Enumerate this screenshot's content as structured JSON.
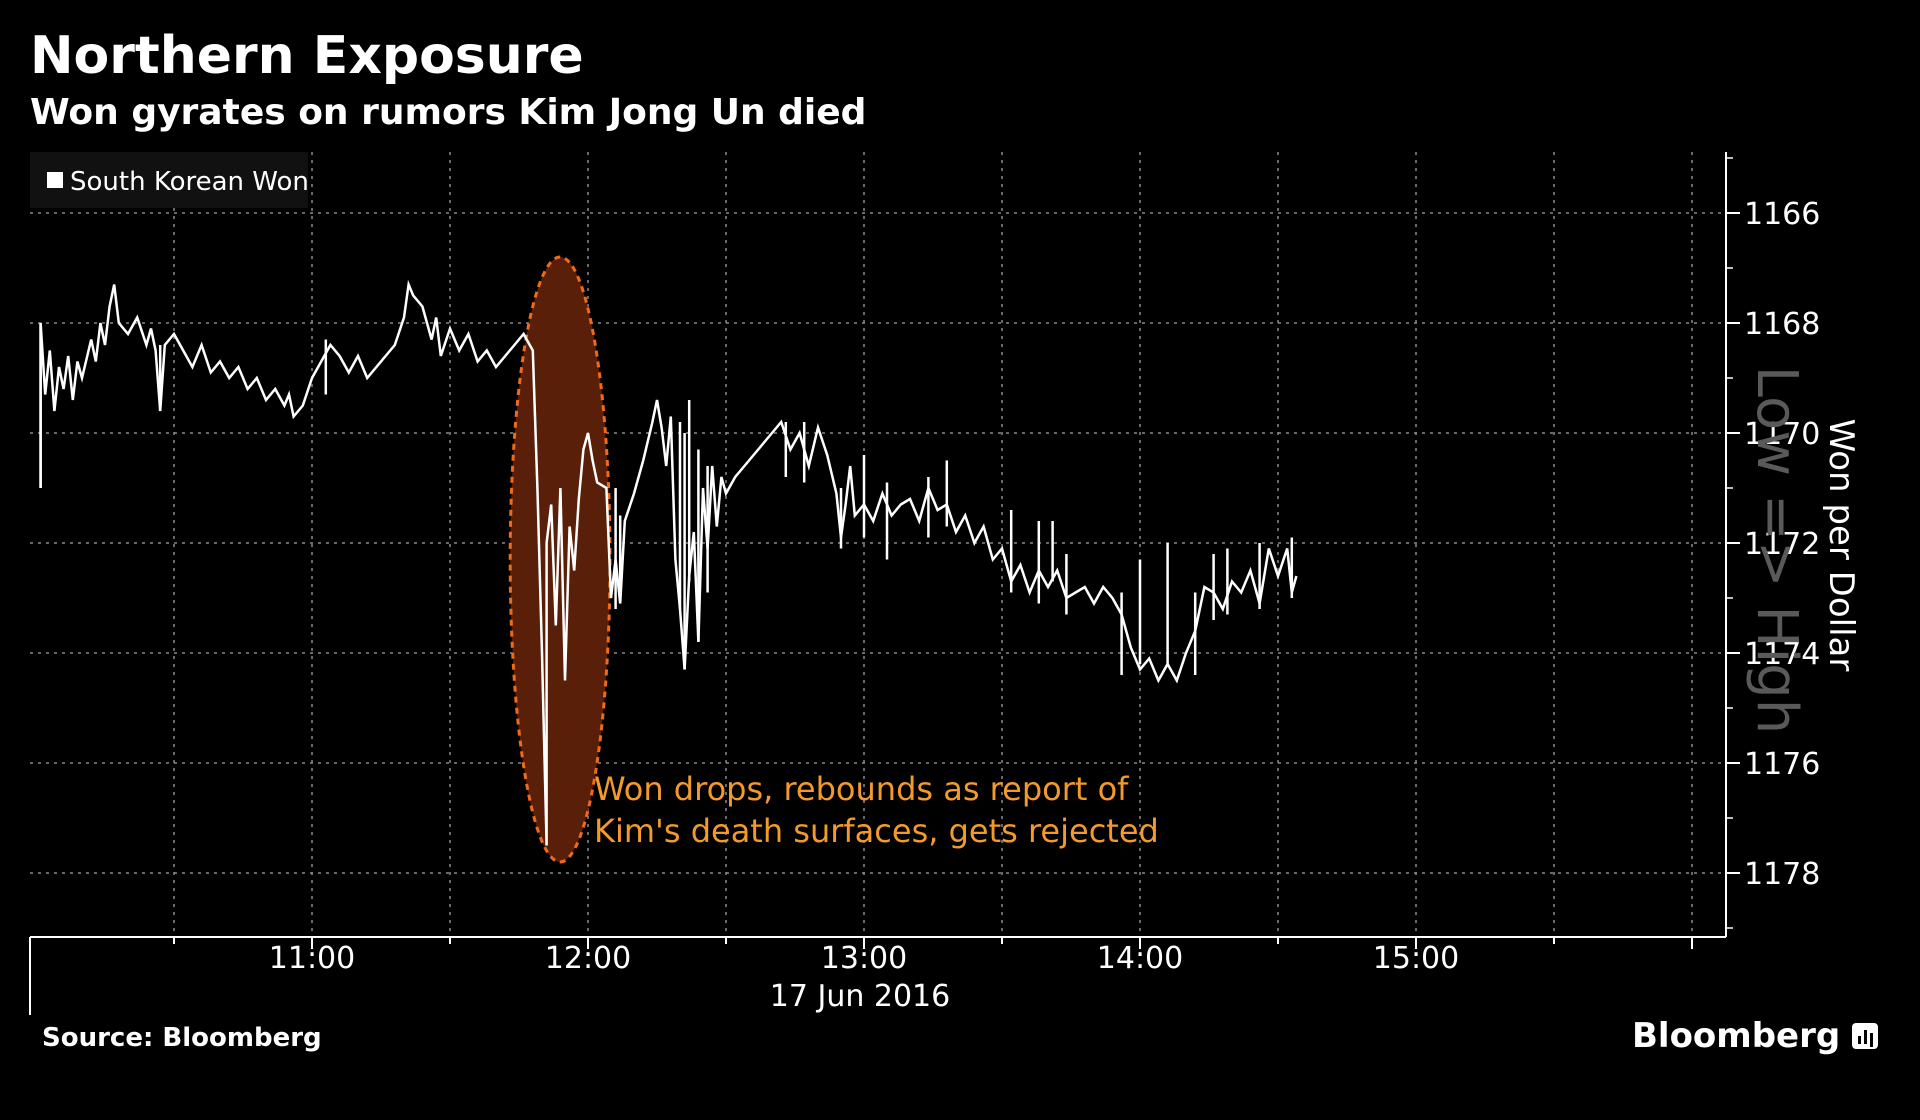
{
  "header": {
    "title": "Northern Exposure",
    "subtitle": "Won gyrates on rumors Kim Jong Un died"
  },
  "footer": {
    "source": "Source: Bloomberg",
    "brand": "Bloomberg"
  },
  "colors": {
    "background": "#000000",
    "line": "#ffffff",
    "grid": "#8a8a8a",
    "highlight_fill": "#5a1f08",
    "highlight_stroke": "#f06a1a",
    "annotation": "#f39a2c"
  },
  "chart_data": {
    "type": "line",
    "legend": [
      "South Korean Won"
    ],
    "legend_position": "top-left",
    "ylabel": "Won per Dollar",
    "y_watermark": "Low => High",
    "ylim": [
      1165,
      1179
    ],
    "y_inverted": true,
    "y_axis_side": "right",
    "y_ticks": [
      1166,
      1168,
      1170,
      1172,
      1174,
      1176,
      1178
    ],
    "x_ticks": [
      "11:00",
      "12:00",
      "13:00",
      "14:00",
      "15:00"
    ],
    "x_sublabel": "17 Jun 2016",
    "xlim": [
      "10:01",
      "16:00"
    ],
    "grid": true,
    "series": [
      {
        "name": "South Korean Won",
        "points": [
          [
            "10:01",
            1171.0
          ],
          [
            "10:01",
            1168.0
          ],
          [
            "10:02",
            1169.3
          ],
          [
            "10:03",
            1168.5
          ],
          [
            "10:04",
            1169.6
          ],
          [
            "10:05",
            1168.8
          ],
          [
            "10:06",
            1169.2
          ],
          [
            "10:07",
            1168.6
          ],
          [
            "10:08",
            1169.4
          ],
          [
            "10:09",
            1168.7
          ],
          [
            "10:10",
            1169.0
          ],
          [
            "10:12",
            1168.3
          ],
          [
            "10:13",
            1168.7
          ],
          [
            "10:14",
            1168.0
          ],
          [
            "10:15",
            1168.4
          ],
          [
            "10:16",
            1167.7
          ],
          [
            "10:17",
            1167.3
          ],
          [
            "10:18",
            1168.0
          ],
          [
            "10:20",
            1168.2
          ],
          [
            "10:22",
            1167.9
          ],
          [
            "10:24",
            1168.4
          ],
          [
            "10:25",
            1168.1
          ],
          [
            "10:26",
            1168.5
          ],
          [
            "10:27",
            1169.6
          ],
          [
            "10:28",
            1168.4
          ],
          [
            "10:30",
            1168.2
          ],
          [
            "10:32",
            1168.5
          ],
          [
            "10:34",
            1168.8
          ],
          [
            "10:36",
            1168.4
          ],
          [
            "10:38",
            1168.9
          ],
          [
            "10:40",
            1168.7
          ],
          [
            "10:42",
            1169.0
          ],
          [
            "10:44",
            1168.8
          ],
          [
            "10:46",
            1169.2
          ],
          [
            "10:48",
            1169.0
          ],
          [
            "10:50",
            1169.4
          ],
          [
            "10:52",
            1169.2
          ],
          [
            "10:54",
            1169.5
          ],
          [
            "10:55",
            1169.3
          ],
          [
            "10:56",
            1169.7
          ],
          [
            "10:58",
            1169.5
          ],
          [
            "11:00",
            1169.0
          ],
          [
            "11:02",
            1168.7
          ],
          [
            "11:04",
            1168.4
          ],
          [
            "11:06",
            1168.6
          ],
          [
            "11:08",
            1168.9
          ],
          [
            "11:10",
            1168.6
          ],
          [
            "11:12",
            1169.0
          ],
          [
            "11:14",
            1168.8
          ],
          [
            "11:16",
            1168.6
          ],
          [
            "11:18",
            1168.4
          ],
          [
            "11:20",
            1167.9
          ],
          [
            "11:21",
            1167.3
          ],
          [
            "11:22",
            1167.5
          ],
          [
            "11:24",
            1167.7
          ],
          [
            "11:26",
            1168.3
          ],
          [
            "11:27",
            1167.9
          ],
          [
            "11:28",
            1168.6
          ],
          [
            "11:30",
            1168.1
          ],
          [
            "11:32",
            1168.5
          ],
          [
            "11:34",
            1168.2
          ],
          [
            "11:36",
            1168.7
          ],
          [
            "11:38",
            1168.5
          ],
          [
            "11:40",
            1168.8
          ],
          [
            "11:42",
            1168.6
          ],
          [
            "11:44",
            1168.4
          ],
          [
            "11:46",
            1168.2
          ],
          [
            "11:48",
            1168.5
          ],
          [
            "11:49",
            1171.0
          ],
          [
            "11:50",
            1174.0
          ],
          [
            "11:51",
            1177.5
          ],
          [
            "11:51",
            1172.0
          ],
          [
            "11:52",
            1171.3
          ],
          [
            "11:53",
            1173.5
          ],
          [
            "11:54",
            1171.0
          ],
          [
            "11:55",
            1174.5
          ],
          [
            "11:56",
            1171.7
          ],
          [
            "11:57",
            1172.5
          ],
          [
            "11:58",
            1171.2
          ],
          [
            "11:59",
            1170.3
          ],
          [
            "12:00",
            1170.0
          ],
          [
            "12:01",
            1170.5
          ],
          [
            "12:02",
            1170.9
          ],
          [
            "12:04",
            1171.0
          ],
          [
            "12:05",
            1173.0
          ],
          [
            "12:06",
            1172.3
          ],
          [
            "12:07",
            1173.1
          ],
          [
            "12:08",
            1171.6
          ],
          [
            "12:10",
            1171.1
          ],
          [
            "12:12",
            1170.5
          ],
          [
            "12:14",
            1169.8
          ],
          [
            "12:15",
            1169.4
          ],
          [
            "12:16",
            1169.9
          ],
          [
            "12:17",
            1170.6
          ],
          [
            "12:18",
            1169.7
          ],
          [
            "12:19",
            1172.3
          ],
          [
            "12:20",
            1173.2
          ],
          [
            "12:21",
            1174.3
          ],
          [
            "12:22",
            1172.6
          ],
          [
            "12:23",
            1171.8
          ],
          [
            "12:24",
            1173.8
          ],
          [
            "12:25",
            1171.0
          ],
          [
            "12:26",
            1172.1
          ],
          [
            "12:27",
            1170.6
          ],
          [
            "12:28",
            1171.7
          ],
          [
            "12:29",
            1170.8
          ],
          [
            "12:30",
            1171.1
          ],
          [
            "12:32",
            1170.8
          ],
          [
            "12:34",
            1170.6
          ],
          [
            "12:36",
            1170.4
          ],
          [
            "12:38",
            1170.2
          ],
          [
            "12:40",
            1170.0
          ],
          [
            "12:42",
            1169.8
          ],
          [
            "12:44",
            1170.3
          ],
          [
            "12:46",
            1170.0
          ],
          [
            "12:48",
            1170.6
          ],
          [
            "12:50",
            1169.9
          ],
          [
            "12:52",
            1170.4
          ],
          [
            "12:54",
            1171.1
          ],
          [
            "12:55",
            1171.9
          ],
          [
            "12:56",
            1171.3
          ],
          [
            "12:57",
            1170.6
          ],
          [
            "12:58",
            1171.5
          ],
          [
            "13:00",
            1171.3
          ],
          [
            "13:02",
            1171.6
          ],
          [
            "13:04",
            1171.1
          ],
          [
            "13:06",
            1171.5
          ],
          [
            "13:08",
            1171.3
          ],
          [
            "13:10",
            1171.2
          ],
          [
            "13:12",
            1171.6
          ],
          [
            "13:14",
            1171.0
          ],
          [
            "13:16",
            1171.4
          ],
          [
            "13:18",
            1171.3
          ],
          [
            "13:20",
            1171.8
          ],
          [
            "13:22",
            1171.5
          ],
          [
            "13:24",
            1172.0
          ],
          [
            "13:26",
            1171.7
          ],
          [
            "13:28",
            1172.3
          ],
          [
            "13:30",
            1172.1
          ],
          [
            "13:32",
            1172.7
          ],
          [
            "13:34",
            1172.4
          ],
          [
            "13:36",
            1172.9
          ],
          [
            "13:38",
            1172.5
          ],
          [
            "13:40",
            1172.8
          ],
          [
            "13:42",
            1172.5
          ],
          [
            "13:44",
            1173.0
          ],
          [
            "13:46",
            1172.9
          ],
          [
            "13:48",
            1172.8
          ],
          [
            "13:50",
            1173.1
          ],
          [
            "13:52",
            1172.8
          ],
          [
            "13:54",
            1173.0
          ],
          [
            "13:56",
            1173.3
          ],
          [
            "13:58",
            1173.9
          ],
          [
            "14:00",
            1174.3
          ],
          [
            "14:02",
            1174.1
          ],
          [
            "14:04",
            1174.5
          ],
          [
            "14:06",
            1174.2
          ],
          [
            "14:08",
            1174.5
          ],
          [
            "14:10",
            1174.0
          ],
          [
            "14:12",
            1173.6
          ],
          [
            "14:14",
            1172.8
          ],
          [
            "14:16",
            1172.9
          ],
          [
            "14:18",
            1173.2
          ],
          [
            "14:20",
            1172.7
          ],
          [
            "14:22",
            1172.9
          ],
          [
            "14:24",
            1172.5
          ],
          [
            "14:26",
            1173.1
          ],
          [
            "14:28",
            1172.1
          ],
          [
            "14:30",
            1172.6
          ],
          [
            "14:32",
            1172.1
          ],
          [
            "14:33",
            1172.9
          ],
          [
            "14:34",
            1172.6
          ]
        ]
      }
    ],
    "spikes": [
      {
        "time": "10:01",
        "low": 1168.0,
        "high": 1171.0
      },
      {
        "time": "10:27",
        "low": 1168.4,
        "high": 1169.6
      },
      {
        "time": "11:03",
        "low": 1168.3,
        "high": 1169.3
      },
      {
        "time": "12:06",
        "low": 1171.0,
        "high": 1173.2
      },
      {
        "time": "12:07",
        "low": 1171.5,
        "high": 1173.1
      },
      {
        "time": "12:20",
        "low": 1169.8,
        "high": 1173.2
      },
      {
        "time": "12:21",
        "low": 1170.0,
        "high": 1174.3
      },
      {
        "time": "12:22",
        "low": 1169.4,
        "high": 1172.7
      },
      {
        "time": "12:24",
        "low": 1170.3,
        "high": 1173.8
      },
      {
        "time": "12:26",
        "low": 1170.6,
        "high": 1172.9
      },
      {
        "time": "12:43",
        "low": 1169.8,
        "high": 1170.8
      },
      {
        "time": "12:47",
        "low": 1169.8,
        "high": 1170.9
      },
      {
        "time": "12:55",
        "low": 1171.0,
        "high": 1172.1
      },
      {
        "time": "13:00",
        "low": 1170.4,
        "high": 1171.9
      },
      {
        "time": "13:05",
        "low": 1170.9,
        "high": 1172.3
      },
      {
        "time": "13:14",
        "low": 1170.8,
        "high": 1171.9
      },
      {
        "time": "13:18",
        "low": 1170.5,
        "high": 1171.7
      },
      {
        "time": "13:32",
        "low": 1171.4,
        "high": 1172.9
      },
      {
        "time": "13:38",
        "low": 1171.6,
        "high": 1173.1
      },
      {
        "time": "13:41",
        "low": 1171.6,
        "high": 1172.7
      },
      {
        "time": "13:44",
        "low": 1172.2,
        "high": 1173.3
      },
      {
        "time": "13:56",
        "low": 1172.9,
        "high": 1174.4
      },
      {
        "time": "14:00",
        "low": 1172.3,
        "high": 1174.2
      },
      {
        "time": "14:06",
        "low": 1172.0,
        "high": 1174.2
      },
      {
        "time": "14:12",
        "low": 1172.9,
        "high": 1174.4
      },
      {
        "time": "14:16",
        "low": 1172.2,
        "high": 1173.4
      },
      {
        "time": "14:19",
        "low": 1172.1,
        "high": 1173.3
      },
      {
        "time": "14:26",
        "low": 1172.0,
        "high": 1173.2
      },
      {
        "time": "14:33",
        "low": 1171.9,
        "high": 1173.0
      }
    ],
    "annotations": [
      {
        "text_lines": [
          "Won drops, rebounds as report of",
          "Kim's death surfaces, gets rejected"
        ],
        "highlight_from": "11:47",
        "highlight_to": "12:00"
      }
    ]
  }
}
